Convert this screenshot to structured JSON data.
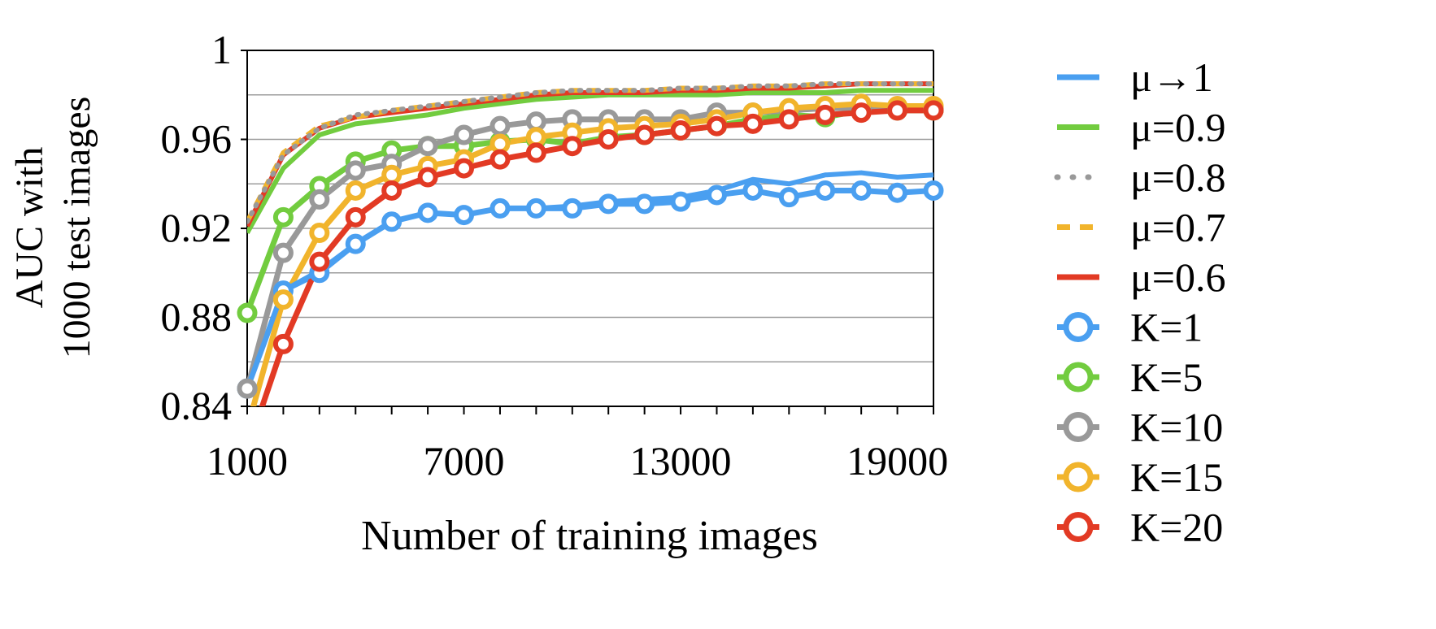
{
  "chart_data": {
    "type": "line",
    "xlabel": "Number of training images",
    "ylabel_lines": [
      "AUC with",
      "1000 test images"
    ],
    "xlim": [
      1000,
      20000
    ],
    "ylim": [
      0.84,
      1.0
    ],
    "xticks": [
      1000,
      7000,
      13000,
      19000
    ],
    "yticks": [
      0.84,
      0.88,
      0.92,
      0.96,
      1.0
    ],
    "ytick_labels": [
      "0.84",
      "0.88",
      "0.92",
      "0.96",
      "1"
    ],
    "grid": "horizontal every 0.02",
    "legend_position": "right",
    "x": [
      1000,
      2000,
      3000,
      4000,
      5000,
      6000,
      7000,
      8000,
      9000,
      10000,
      11000,
      12000,
      13000,
      14000,
      15000,
      16000,
      17000,
      18000,
      19000,
      20000
    ],
    "series": [
      {
        "name": "μ→1",
        "color": "#4a9ff0",
        "style": "solid",
        "marker": false,
        "values": [
          0.848,
          0.892,
          0.901,
          0.913,
          0.923,
          0.927,
          0.926,
          0.929,
          0.929,
          0.93,
          0.932,
          0.933,
          0.934,
          0.937,
          0.942,
          0.94,
          0.944,
          0.945,
          0.943,
          0.944
        ]
      },
      {
        "name": "μ=0.9",
        "color": "#72cc3f",
        "style": "solid",
        "marker": false,
        "values": [
          0.918,
          0.947,
          0.962,
          0.967,
          0.969,
          0.971,
          0.974,
          0.976,
          0.978,
          0.979,
          0.98,
          0.98,
          0.98,
          0.98,
          0.981,
          0.981,
          0.981,
          0.982,
          0.982,
          0.982
        ]
      },
      {
        "name": "μ=0.8",
        "color": "#999999",
        "style": "dotted",
        "marker": false,
        "values": [
          0.923,
          0.953,
          0.965,
          0.971,
          0.973,
          0.975,
          0.977,
          0.979,
          0.981,
          0.982,
          0.982,
          0.982,
          0.983,
          0.983,
          0.984,
          0.984,
          0.985,
          0.985,
          0.985,
          0.985
        ]
      },
      {
        "name": "μ=0.7",
        "color": "#f1b42c",
        "style": "dashed",
        "marker": false,
        "values": [
          0.923,
          0.954,
          0.966,
          0.97,
          0.973,
          0.975,
          0.977,
          0.979,
          0.981,
          0.982,
          0.982,
          0.982,
          0.983,
          0.983,
          0.984,
          0.984,
          0.985,
          0.985,
          0.985,
          0.985
        ]
      },
      {
        "name": "μ=0.6",
        "color": "#e23a24",
        "style": "solid",
        "marker": false,
        "values": [
          0.921,
          0.953,
          0.965,
          0.97,
          0.972,
          0.974,
          0.976,
          0.978,
          0.98,
          0.981,
          0.981,
          0.981,
          0.982,
          0.982,
          0.983,
          0.983,
          0.984,
          0.985,
          0.985,
          0.985
        ]
      },
      {
        "name": "K=1",
        "color": "#4a9ff0",
        "style": "solid",
        "marker": true,
        "values": [
          0.848,
          0.892,
          0.9,
          0.913,
          0.923,
          0.927,
          0.926,
          0.929,
          0.929,
          0.929,
          0.931,
          0.931,
          0.932,
          0.935,
          0.937,
          0.934,
          0.937,
          0.937,
          0.936,
          0.937
        ]
      },
      {
        "name": "K=5",
        "color": "#72cc3f",
        "style": "solid",
        "marker": true,
        "values": [
          0.882,
          0.925,
          0.939,
          0.95,
          0.955,
          0.957,
          0.957,
          0.959,
          0.96,
          0.958,
          0.961,
          0.962,
          0.964,
          0.966,
          0.969,
          0.971,
          0.97,
          0.973,
          0.973,
          0.973
        ]
      },
      {
        "name": "K=10",
        "color": "#999999",
        "style": "solid",
        "marker": true,
        "values": [
          0.848,
          0.909,
          0.933,
          0.946,
          0.949,
          0.957,
          0.962,
          0.966,
          0.968,
          0.969,
          0.969,
          0.969,
          0.969,
          0.972,
          0.972,
          0.973,
          0.974,
          0.974,
          0.974,
          0.974
        ]
      },
      {
        "name": "K=15",
        "color": "#f1b42c",
        "style": "solid",
        "marker": true,
        "values": [
          0.83,
          0.888,
          0.918,
          0.937,
          0.944,
          0.948,
          0.951,
          0.958,
          0.961,
          0.963,
          0.965,
          0.966,
          0.967,
          0.969,
          0.972,
          0.974,
          0.975,
          0.976,
          0.975,
          0.975
        ]
      },
      {
        "name": "K=20",
        "color": "#e23a24",
        "style": "solid",
        "marker": true,
        "values": [
          0.82,
          0.868,
          0.905,
          0.925,
          0.937,
          0.943,
          0.947,
          0.951,
          0.954,
          0.957,
          0.96,
          0.962,
          0.964,
          0.966,
          0.967,
          0.969,
          0.971,
          0.972,
          0.973,
          0.973
        ]
      }
    ]
  }
}
